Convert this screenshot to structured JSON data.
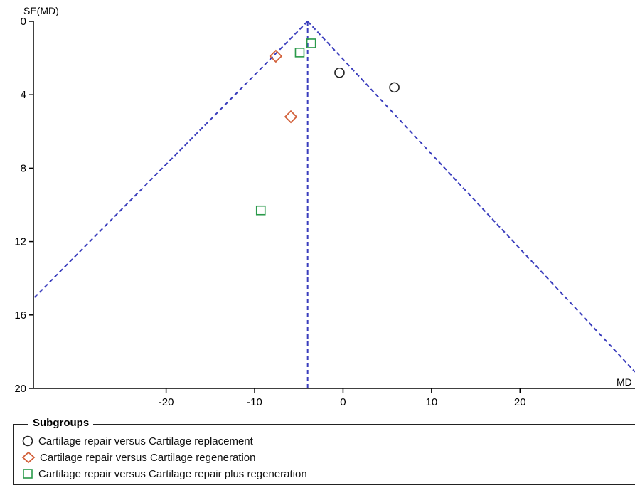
{
  "chart_data": {
    "type": "scatter",
    "subtype": "funnel-plot",
    "xlabel": "MD",
    "ylabel": "SE(MD)",
    "xlim": [
      -35,
      33
    ],
    "ylim": [
      0,
      20
    ],
    "y_inverted": true,
    "x_ticks": [
      -20,
      -10,
      0,
      10,
      20
    ],
    "y_ticks": [
      0,
      4,
      8,
      12,
      16,
      20
    ],
    "grid": false,
    "funnel": {
      "center": -4,
      "color": "#3a3dbd",
      "style": "dashed"
    },
    "legend": {
      "title": "Subgroups",
      "placement": "bottom"
    },
    "series": [
      {
        "name": "Cartilage repair versus Cartilage replacement",
        "marker": "circle",
        "color": "#222222",
        "points": [
          {
            "x": -0.4,
            "y": 2.8
          },
          {
            "x": 5.8,
            "y": 3.6
          }
        ]
      },
      {
        "name": "Cartilage repair versus Cartilage regeneration",
        "marker": "diamond",
        "color": "#d2603a",
        "points": [
          {
            "x": -7.6,
            "y": 1.9
          },
          {
            "x": -5.9,
            "y": 5.2
          }
        ]
      },
      {
        "name": "Cartilage repair versus Cartilage repair plus regeneration",
        "marker": "square",
        "color": "#2a9a4a",
        "points": [
          {
            "x": -3.6,
            "y": 1.2
          },
          {
            "x": -4.9,
            "y": 1.7
          },
          {
            "x": -9.3,
            "y": 10.3
          }
        ]
      }
    ]
  }
}
